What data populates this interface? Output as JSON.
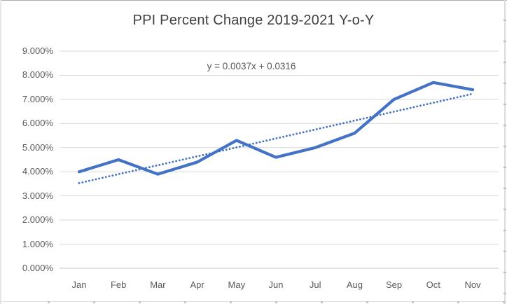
{
  "chart_data": {
    "type": "line",
    "title": "PPI Percent Change 2019-2021 Y-o-Y",
    "categories": [
      "Jan",
      "Feb",
      "Mar",
      "Apr",
      "May",
      "Jun",
      "Jul",
      "Aug",
      "Sep",
      "Oct",
      "Nov"
    ],
    "series": [
      {
        "name": "PPI Percent Change",
        "values": [
          0.04,
          0.045,
          0.039,
          0.044,
          0.053,
          0.046,
          0.05,
          0.056,
          0.07,
          0.077,
          0.074
        ],
        "color": "#4472C4",
        "style": "solid"
      }
    ],
    "trendline": {
      "equation": "y = 0.0037x + 0.0316",
      "slope": 0.0037,
      "intercept": 0.0316,
      "color": "#4472C4",
      "style": "dotted"
    },
    "xlabel": "",
    "ylabel": "",
    "ylim": [
      0,
      0.09
    ],
    "ytick_step": 0.01,
    "ytick_labels": [
      "0.000%",
      "1.000%",
      "2.000%",
      "3.000%",
      "4.000%",
      "5.000%",
      "6.000%",
      "7.000%",
      "8.000%",
      "9.000%"
    ],
    "grid": true,
    "legend": "none",
    "colors": {
      "gridline": "#d9d9d9",
      "axis_line": "#c9c9c9",
      "tick_label": "#595959",
      "title": "#3f3f3f"
    }
  }
}
